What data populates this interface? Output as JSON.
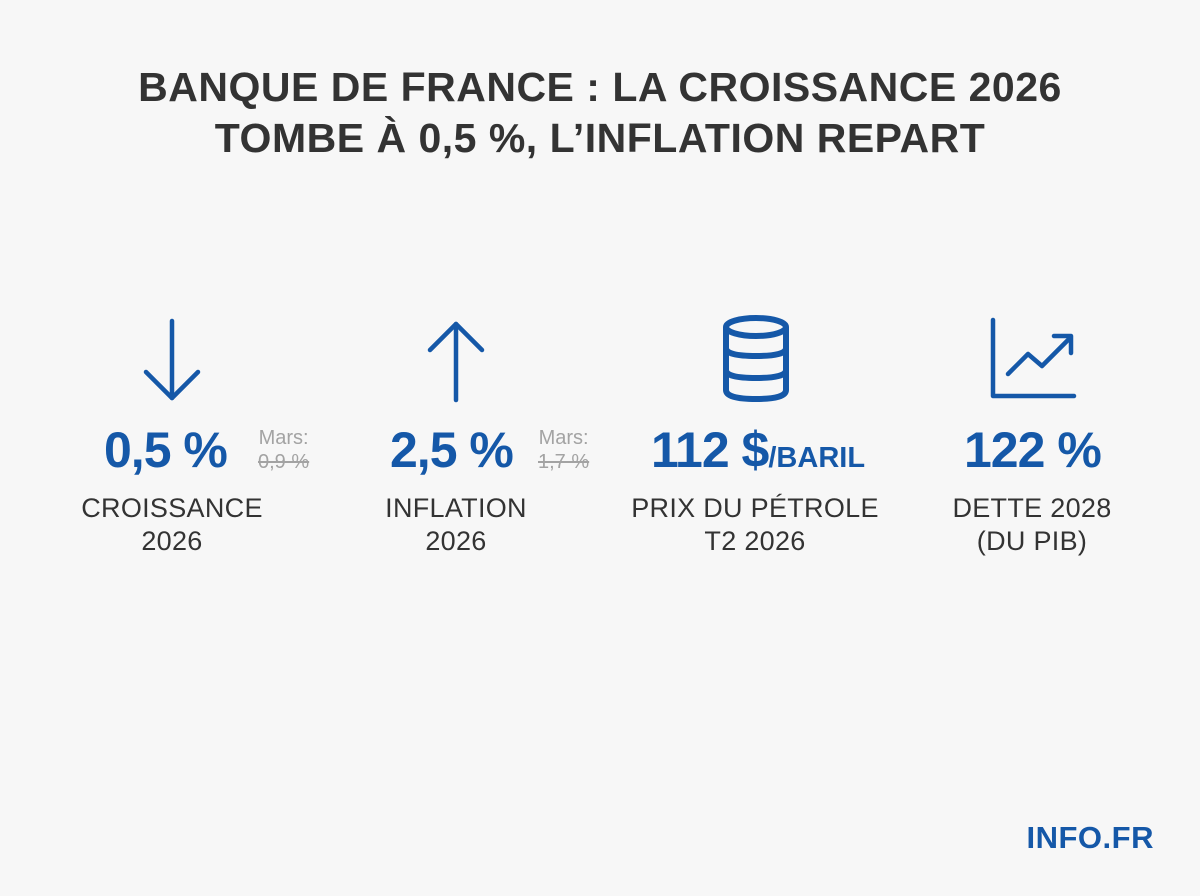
{
  "title": {
    "line1": "BANQUE DE FRANCE : LA CROISSANCE 2026",
    "line2": "TOMBE À 0,5 %, L’INFLATION REPART"
  },
  "accent_color": "#1558a8",
  "stats": [
    {
      "icon": "arrow-down-icon",
      "value": "0,5 %",
      "prev_label": "Mars:",
      "prev_value": "0,9 %",
      "label_line1": "CROISSANCE",
      "label_line2": "2026"
    },
    {
      "icon": "arrow-up-icon",
      "value": "2,5 %",
      "prev_label": "Mars:",
      "prev_value": "1,7 %",
      "label_line1": "INFLATION",
      "label_line2": "2026"
    },
    {
      "icon": "oil-barrel-icon",
      "value": "112 $",
      "unit": "/BARIL",
      "label_line1": "PRIX DU PÉTROLE",
      "label_line2": "T2 2026"
    },
    {
      "icon": "line-chart-up-icon",
      "value": "122 %",
      "label_line1": "DETTE 2028",
      "label_line2": "(DU PIB)"
    }
  ],
  "brand": "INFO.FR"
}
